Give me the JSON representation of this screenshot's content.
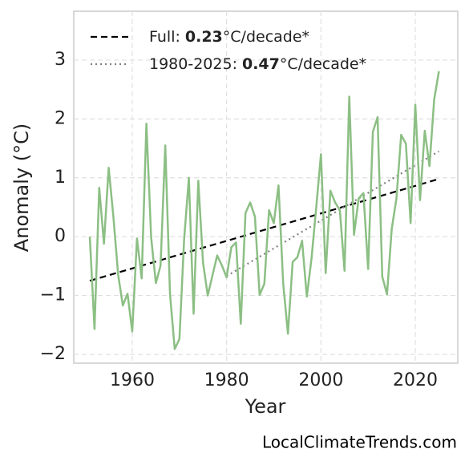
{
  "chart_data": {
    "type": "line",
    "xlabel": "Year",
    "ylabel": "Anomaly (°C)",
    "source": "LocalClimateTrends.com",
    "xlim": [
      1947.6,
      2029
    ],
    "ylim": [
      -2.15,
      3.83
    ],
    "xticks": [
      1960,
      1980,
      2000,
      2020
    ],
    "yticks": [
      {
        "value": -2,
        "label": "−2"
      },
      {
        "value": -1,
        "label": "−1"
      },
      0,
      1,
      2,
      3
    ],
    "grid": true,
    "legend": "upper left",
    "x": [
      1951,
      1952,
      1953,
      1954,
      1955,
      1956,
      1957,
      1958,
      1959,
      1960,
      1961,
      1962,
      1963,
      1964,
      1965,
      1966,
      1967,
      1968,
      1969,
      1970,
      1971,
      1972,
      1973,
      1974,
      1975,
      1976,
      1977,
      1978,
      1979,
      1980,
      1981,
      1982,
      1983,
      1984,
      1985,
      1986,
      1987,
      1988,
      1989,
      1990,
      1991,
      1992,
      1993,
      1994,
      1995,
      1996,
      1997,
      1998,
      1999,
      2000,
      2001,
      2002,
      2003,
      2004,
      2005,
      2006,
      2007,
      2008,
      2009,
      2010,
      2011,
      2012,
      2013,
      2014,
      2015,
      2016,
      2017,
      2018,
      2019,
      2020,
      2021,
      2022,
      2023,
      2024,
      2025
    ],
    "values": [
      0.0,
      -1.57,
      0.83,
      -0.12,
      1.17,
      0.34,
      -0.64,
      -1.17,
      -0.97,
      -1.61,
      -0.03,
      -0.71,
      1.92,
      -0.01,
      -0.79,
      -0.49,
      1.55,
      -0.97,
      -1.91,
      -1.74,
      -0.04,
      1.0,
      -1.31,
      0.95,
      -0.44,
      -1.0,
      -0.66,
      -0.32,
      -0.49,
      -0.69,
      -0.18,
      -0.1,
      -1.48,
      0.4,
      0.58,
      0.34,
      -0.99,
      -0.8,
      0.45,
      0.23,
      0.87,
      -0.8,
      -1.65,
      -0.43,
      -0.35,
      -0.07,
      -1.02,
      -0.37,
      0.5,
      1.4,
      -0.62,
      0.78,
      0.58,
      0.45,
      -0.58,
      2.38,
      0.03,
      0.65,
      0.74,
      -0.55,
      1.78,
      2.03,
      -0.68,
      -0.98,
      0.13,
      0.65,
      1.73,
      1.58,
      0.23,
      2.24,
      0.62,
      1.8,
      1.2,
      2.33,
      2.81
    ],
    "color": "#8cbf84",
    "trends": [
      {
        "name": "Full:",
        "slope": 0.23,
        "unit": "°C/decade*",
        "color": "#000000",
        "style": "dashed",
        "x": [
          1951,
          2025
        ],
        "values": [
          -0.75,
          0.98
        ]
      },
      {
        "name": "1980-2025:",
        "slope": 0.47,
        "unit": "°C/decade*",
        "color": "#808080",
        "style": "dotted",
        "x": [
          1980,
          2025
        ],
        "values": [
          -0.67,
          1.45
        ]
      }
    ]
  }
}
